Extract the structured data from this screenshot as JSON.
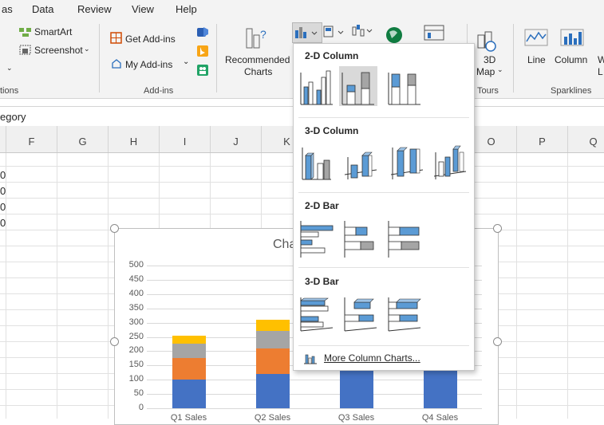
{
  "menubar": {
    "items": [
      "as",
      "Data",
      "Review",
      "View",
      "Help"
    ]
  },
  "ribbon": {
    "smartart": "SmartArt",
    "screenshot": "Screenshot",
    "illustrations_group": "tions",
    "get_addins": "Get Add-ins",
    "my_addins": "My Add-ins",
    "addins_group": "Add-ins",
    "recommended_charts_line1": "Recommended",
    "recommended_charts_line2": "Charts",
    "map3d_line1": "3D",
    "map3d_line2": "Map",
    "tours_group": "Tours",
    "spark_line": "Line",
    "spark_column": "Column",
    "spark_winloss_line1": "W",
    "spark_winloss_line2": "L",
    "sparklines_group": "Sparklines"
  },
  "formula": {
    "text": "egory"
  },
  "columns": [
    "F",
    "G",
    "H",
    "I",
    "J",
    "K",
    "O",
    "P",
    "Q"
  ],
  "cells": {
    "partial_values": [
      "0",
      "0",
      "0",
      "0"
    ]
  },
  "chart_title_partial": "Cha",
  "chart_data": {
    "type": "bar",
    "stacked": true,
    "title": "",
    "categories": [
      "Q1 Sales",
      "Q2 Sales",
      "Q3 Sales",
      "Q4 Sales"
    ],
    "ylim": [
      0,
      500
    ],
    "yticks": [
      0,
      50,
      100,
      150,
      200,
      250,
      300,
      350,
      400,
      450,
      500
    ],
    "series": [
      {
        "color": "#4472c4",
        "values": [
          100,
          120,
          140,
          140
        ]
      },
      {
        "color": "#ed7d31",
        "values": [
          75,
          90,
          null,
          null
        ]
      },
      {
        "color": "#a5a5a5",
        "values": [
          50,
          60,
          null,
          null
        ]
      },
      {
        "color": "#ffc000",
        "values": [
          30,
          40,
          null,
          null
        ]
      }
    ]
  },
  "dropdown": {
    "sections": {
      "col2d": "2-D Column",
      "col3d": "3-D Column",
      "bar2d": "2-D Bar",
      "bar3d": "3-D Bar"
    },
    "more_label": "More Column Charts...",
    "selected": "stacked-column-2d",
    "colors": {
      "blue": "#5b9bd5",
      "gray": "#a5a5a5",
      "highlight": "#d9d9d9"
    }
  }
}
